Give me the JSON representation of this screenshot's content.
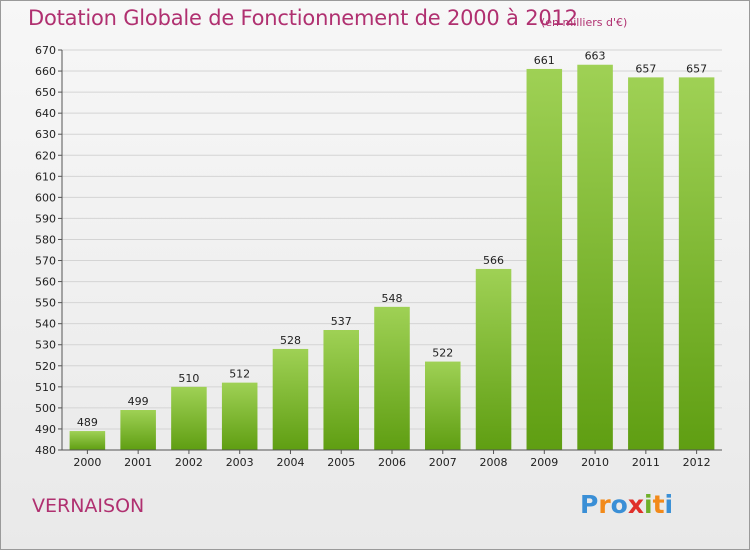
{
  "header": {
    "title": "Dotation Globale de Fonctionnement de 2000 à 2012",
    "unit": "(en milliers d'€)"
  },
  "footer": {
    "place": "VERNAISON",
    "logo_letters": [
      "P",
      "r",
      "o",
      "x",
      "i",
      "t",
      "i"
    ],
    "logo_colors": [
      "#3a8fd6",
      "#f28a1a",
      "#3a8fd6",
      "#e0302a",
      "#6fb02a",
      "#f28a1a",
      "#3a8fd6"
    ]
  },
  "colors": {
    "title": "#b03070",
    "bar_top": "#9fd155",
    "bar_bottom": "#5f9e12",
    "grid": "#d4d4d4"
  },
  "chart_data": {
    "type": "bar",
    "title": "Dotation Globale de Fonctionnement de 2000 à 2012",
    "subtitle": "(en milliers d'€)",
    "categories": [
      "2000",
      "2001",
      "2002",
      "2003",
      "2004",
      "2005",
      "2006",
      "2007",
      "2008",
      "2009",
      "2010",
      "2011",
      "2012"
    ],
    "values": [
      489,
      499,
      510,
      512,
      528,
      537,
      548,
      522,
      566,
      661,
      663,
      657,
      657
    ],
    "ylim": [
      480,
      670
    ],
    "yticks": [
      480,
      490,
      500,
      510,
      520,
      530,
      540,
      550,
      560,
      570,
      580,
      590,
      600,
      610,
      620,
      630,
      640,
      650,
      660,
      670
    ],
    "grid": true,
    "data_labels": true
  }
}
